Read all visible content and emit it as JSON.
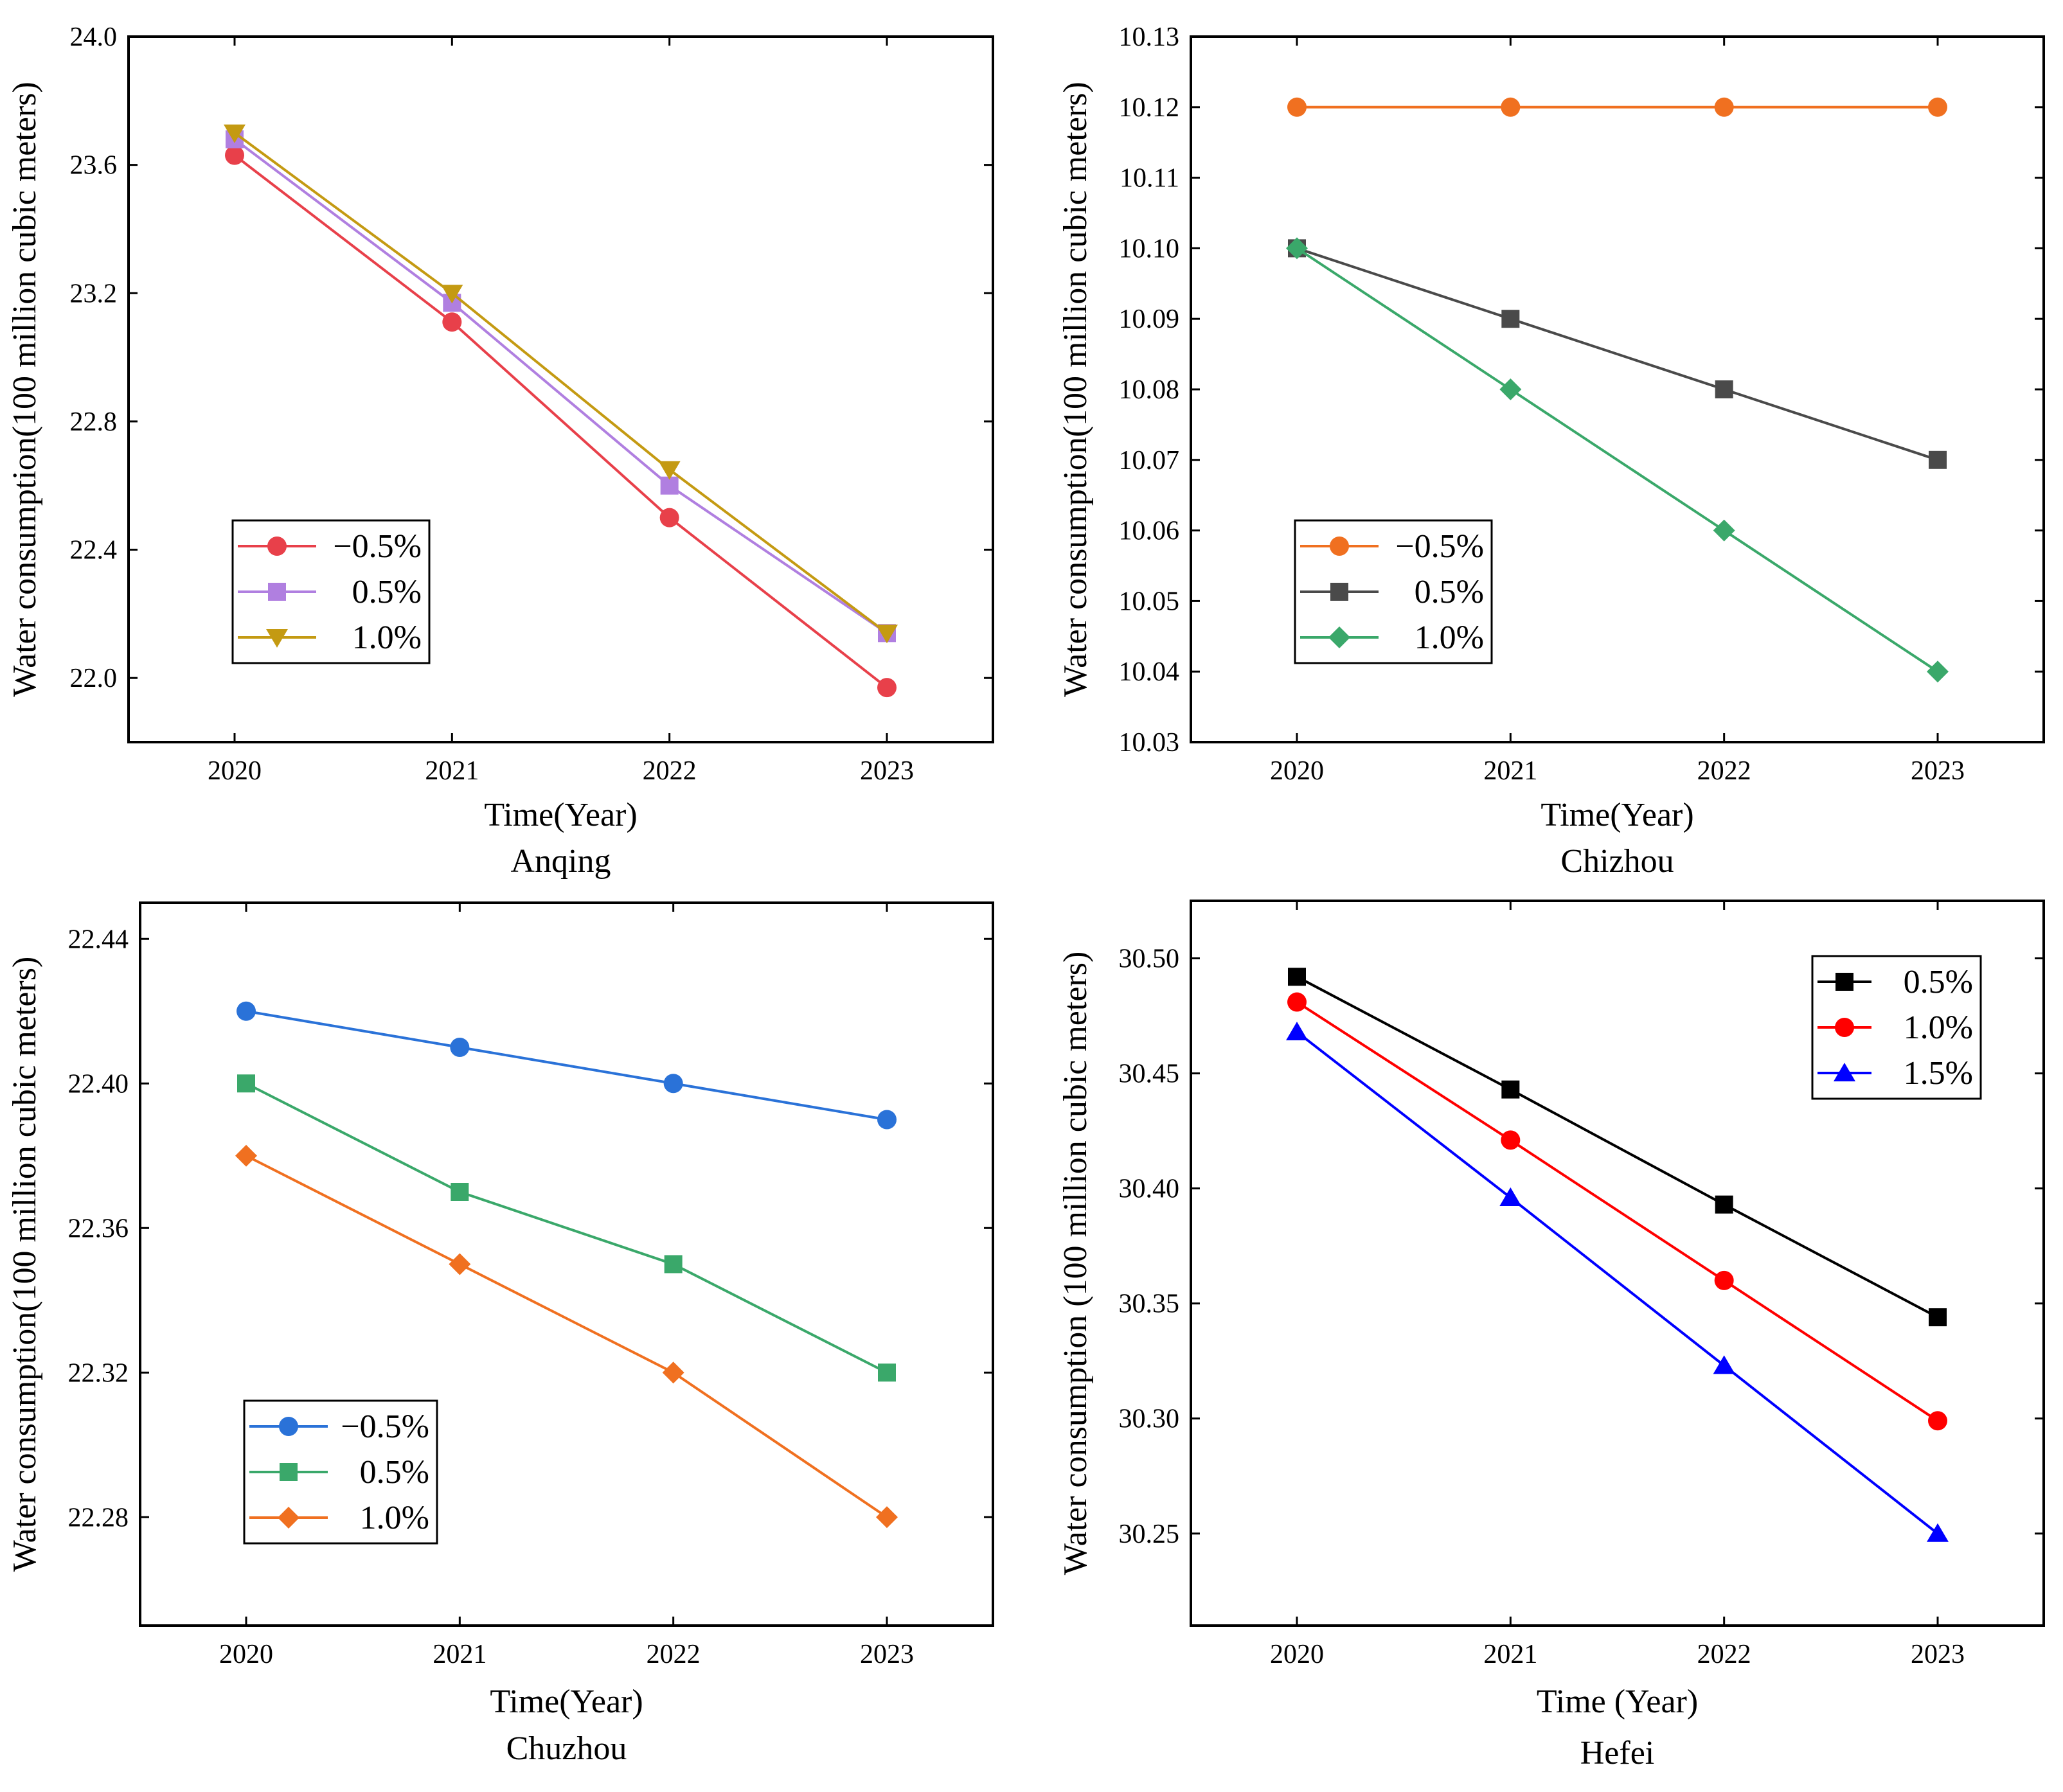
{
  "chart_data": [
    {
      "type": "line",
      "title": "Anqing",
      "xlabel": "Time(Year)",
      "ylabel": "Water consumption(100 million cubic meters)",
      "categories": [
        "2020",
        "2021",
        "2022",
        "2023"
      ],
      "ylim": [
        21.8,
        24.0
      ],
      "yticks": [
        "22.0",
        "22.4",
        "22.8",
        "23.2",
        "23.6",
        "24.0"
      ],
      "legend_position": "center-left",
      "series": [
        {
          "name": "−0.5%",
          "values": [
            23.63,
            23.11,
            22.5,
            21.97
          ],
          "color": "#e8404a",
          "marker": "circle"
        },
        {
          "name": "0.5%",
          "values": [
            23.68,
            23.17,
            22.6,
            22.14
          ],
          "color": "#b07fe0",
          "marker": "square"
        },
        {
          "name": "1.0%",
          "values": [
            23.7,
            23.2,
            22.65,
            22.14
          ],
          "color": "#c49a12",
          "marker": "triangle-down"
        }
      ]
    },
    {
      "type": "line",
      "title": "Chizhou",
      "xlabel": "Time(Year)",
      "ylabel": "Water consumption(100 million cubic meters)",
      "categories": [
        "2020",
        "2021",
        "2022",
        "2023"
      ],
      "ylim": [
        10.03,
        10.13
      ],
      "yticks": [
        "10.03",
        "10.04",
        "10.05",
        "10.06",
        "10.07",
        "10.08",
        "10.09",
        "10.10",
        "10.11",
        "10.12",
        "10.13"
      ],
      "legend_position": "bottom-left",
      "series": [
        {
          "name": "−0.5%",
          "values": [
            10.12,
            10.12,
            10.12,
            10.12
          ],
          "color": "#f07020",
          "marker": "circle"
        },
        {
          "name": "0.5%",
          "values": [
            10.1,
            10.09,
            10.08,
            10.07
          ],
          "color": "#4a4a4a",
          "marker": "square"
        },
        {
          "name": "1.0%",
          "values": [
            10.1,
            10.08,
            10.06,
            10.04
          ],
          "color": "#3aa86a",
          "marker": "diamond"
        }
      ]
    },
    {
      "type": "line",
      "title": "Chuzhou",
      "xlabel": "Time(Year)",
      "ylabel": "Water consumption(100 million cubic meters)",
      "categories": [
        "2020",
        "2021",
        "2022",
        "2023"
      ],
      "ylim": [
        22.25,
        22.45
      ],
      "yticks": [
        "22.28",
        "22.32",
        "22.36",
        "22.40",
        "22.44"
      ],
      "legend_position": "bottom-left",
      "series": [
        {
          "name": "−0.5%",
          "values": [
            22.42,
            22.41,
            22.4,
            22.39
          ],
          "color": "#2a72d8",
          "marker": "circle"
        },
        {
          "name": "0.5%",
          "values": [
            22.4,
            22.37,
            22.35,
            22.32
          ],
          "color": "#3aa86a",
          "marker": "square"
        },
        {
          "name": "1.0%",
          "values": [
            22.38,
            22.35,
            22.32,
            22.28
          ],
          "color": "#f07020",
          "marker": "diamond"
        }
      ]
    },
    {
      "type": "line",
      "title": "Hefei",
      "xlabel": "Time (Year)",
      "ylabel": "Water consumption (100 million cubic meters)",
      "categories": [
        "2020",
        "2021",
        "2022",
        "2023"
      ],
      "ylim": [
        30.21,
        30.525
      ],
      "yticks": [
        "30.25",
        "30.30",
        "30.35",
        "30.40",
        "30.45",
        "30.50"
      ],
      "legend_position": "top-right",
      "series": [
        {
          "name": "0.5%",
          "values": [
            30.492,
            30.443,
            30.393,
            30.344
          ],
          "color": "#000000",
          "marker": "square"
        },
        {
          "name": "1.0%",
          "values": [
            30.481,
            30.421,
            30.36,
            30.299
          ],
          "color": "#ff0000",
          "marker": "circle"
        },
        {
          "name": "1.5%",
          "values": [
            30.468,
            30.396,
            30.323,
            30.25
          ],
          "color": "#0000ff",
          "marker": "triangle-up"
        }
      ]
    }
  ]
}
